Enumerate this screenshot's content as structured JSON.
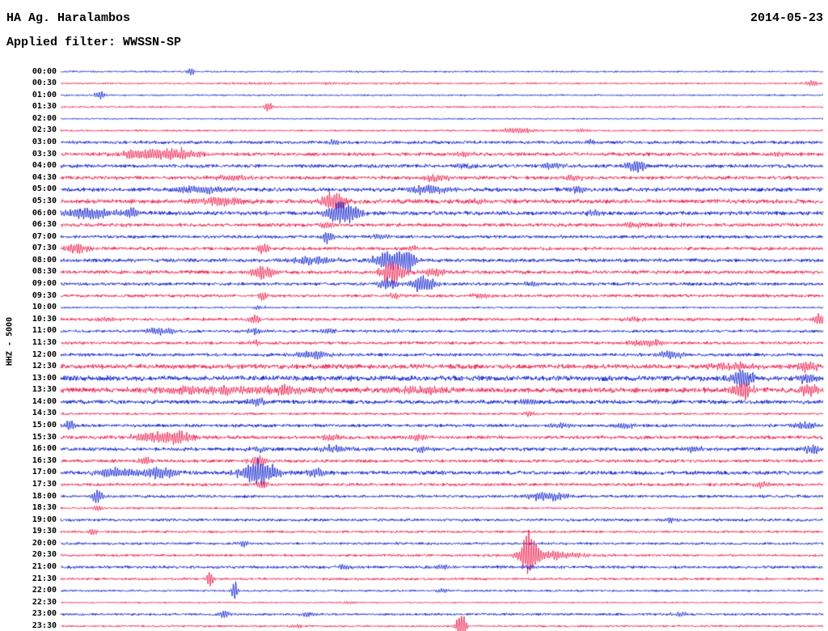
{
  "header": {
    "station_title": "HA Ag. Haralambos",
    "date": "2014-05-23",
    "filter_label": "Applied filter: WWSSN-SP"
  },
  "axis": {
    "vertical_label": "HHZ - 5000"
  },
  "colors": {
    "blue": "#0013cc",
    "red": "#ee1043",
    "text": "#000000",
    "background": "#ffffff"
  },
  "chart_data": {
    "type": "line",
    "subtype": "helicorder-seismogram-dayplot",
    "title": "HA Ag. Haralambos — 2014-05-23 — HHZ — filter WWSSN-SP",
    "row_duration_minutes": 30,
    "rows_count": 48,
    "trace_color_alternation": [
      "blue",
      "red"
    ],
    "note": "Each row = 30 minutes; 'n' is background noise amplitude (px), 'e' lists wave-packet events as fraction position p, amplitude a (px), gaussian width w (fraction of row)",
    "rows": [
      {
        "t": "00:00",
        "c": "blue",
        "n": 0.8,
        "e": [
          {
            "p": 0.17,
            "a": 5,
            "w": 0.004
          }
        ]
      },
      {
        "t": "00:30",
        "c": "red",
        "n": 0.8,
        "e": [
          {
            "p": 0.985,
            "a": 3.5,
            "w": 0.008
          },
          {
            "p": 0.35,
            "a": 1.2,
            "w": 0.15
          }
        ]
      },
      {
        "t": "01:00",
        "c": "blue",
        "n": 0.8,
        "e": [
          {
            "p": 0.052,
            "a": 4.5,
            "w": 0.006
          }
        ]
      },
      {
        "t": "01:30",
        "c": "red",
        "n": 0.9,
        "e": [
          {
            "p": 0.273,
            "a": 6,
            "w": 0.005
          }
        ]
      },
      {
        "t": "02:00",
        "c": "blue",
        "n": 0.7,
        "e": []
      },
      {
        "t": "02:30",
        "c": "red",
        "n": 0.9,
        "e": [
          {
            "p": 0.6,
            "a": 3.5,
            "w": 0.02
          },
          {
            "p": 0.685,
            "a": 2,
            "w": 0.01
          }
        ]
      },
      {
        "t": "03:00",
        "c": "blue",
        "n": 1.6,
        "e": [
          {
            "p": 0.36,
            "a": 3,
            "w": 0.01
          },
          {
            "p": 0.69,
            "a": 3,
            "w": 0.008
          }
        ]
      },
      {
        "t": "03:30",
        "c": "red",
        "n": 1.8,
        "e": [
          {
            "p": 0.1,
            "a": 6,
            "w": 0.02
          },
          {
            "p": 0.15,
            "a": 7,
            "w": 0.025
          },
          {
            "p": 0.53,
            "a": 3,
            "w": 0.01
          },
          {
            "p": 0.945,
            "a": 4,
            "w": 0.006
          }
        ]
      },
      {
        "t": "04:00",
        "c": "blue",
        "n": 1.8,
        "e": [
          {
            "p": 0.53,
            "a": 3,
            "w": 0.01
          },
          {
            "p": 0.645,
            "a": 5,
            "w": 0.012
          },
          {
            "p": 0.755,
            "a": 9,
            "w": 0.01
          }
        ]
      },
      {
        "t": "04:30",
        "c": "red",
        "n": 1.8,
        "e": [
          {
            "p": 0.23,
            "a": 4,
            "w": 0.02
          },
          {
            "p": 0.49,
            "a": 4,
            "w": 0.015
          },
          {
            "p": 0.675,
            "a": 4,
            "w": 0.01
          }
        ]
      },
      {
        "t": "05:00",
        "c": "blue",
        "n": 2.0,
        "e": [
          {
            "p": 0.185,
            "a": 5,
            "w": 0.025
          },
          {
            "p": 0.48,
            "a": 6,
            "w": 0.02
          },
          {
            "p": 0.68,
            "a": 4,
            "w": 0.01
          }
        ]
      },
      {
        "t": "05:30",
        "c": "red",
        "n": 2.2,
        "e": [
          {
            "p": 0.21,
            "a": 6,
            "w": 0.025
          },
          {
            "p": 0.36,
            "a": 12,
            "w": 0.012
          },
          {
            "p": 0.55,
            "a": 4,
            "w": 0.01
          }
        ]
      },
      {
        "t": "06:00",
        "c": "blue",
        "n": 2.0,
        "e": [
          {
            "p": 0.035,
            "a": 9,
            "w": 0.02
          },
          {
            "p": 0.09,
            "a": 6,
            "w": 0.01
          },
          {
            "p": 0.37,
            "a": 16,
            "w": 0.015
          },
          {
            "p": 0.7,
            "a": 4,
            "w": 0.008
          }
        ]
      },
      {
        "t": "06:30",
        "c": "red",
        "n": 1.8,
        "e": [
          {
            "p": 0.35,
            "a": 4,
            "w": 0.01
          },
          {
            "p": 0.75,
            "a": 2.5,
            "w": 0.02
          }
        ]
      },
      {
        "t": "07:00",
        "c": "blue",
        "n": 1.6,
        "e": [
          {
            "p": 0.35,
            "a": 8,
            "w": 0.006
          },
          {
            "p": 0.42,
            "a": 3,
            "w": 0.01
          }
        ]
      },
      {
        "t": "07:30",
        "c": "red",
        "n": 1.6,
        "e": [
          {
            "p": 0.02,
            "a": 7,
            "w": 0.012
          },
          {
            "p": 0.265,
            "a": 8,
            "w": 0.005
          },
          {
            "p": 0.46,
            "a": 4,
            "w": 0.006
          }
        ]
      },
      {
        "t": "08:00",
        "c": "blue",
        "n": 1.8,
        "e": [
          {
            "p": 0.33,
            "a": 6,
            "w": 0.02
          },
          {
            "p": 0.43,
            "a": 12,
            "w": 0.015
          },
          {
            "p": 0.455,
            "a": 14,
            "w": 0.008
          }
        ]
      },
      {
        "t": "08:30",
        "c": "red",
        "n": 1.8,
        "e": [
          {
            "p": 0.265,
            "a": 9,
            "w": 0.012
          },
          {
            "p": 0.435,
            "a": 16,
            "w": 0.012
          },
          {
            "p": 0.49,
            "a": 6,
            "w": 0.01
          }
        ]
      },
      {
        "t": "09:00",
        "c": "blue",
        "n": 1.6,
        "e": [
          {
            "p": 0.43,
            "a": 8,
            "w": 0.01
          },
          {
            "p": 0.475,
            "a": 12,
            "w": 0.012
          },
          {
            "p": 0.62,
            "a": 3,
            "w": 0.008
          }
        ]
      },
      {
        "t": "09:30",
        "c": "red",
        "n": 1.5,
        "e": [
          {
            "p": 0.265,
            "a": 6,
            "w": 0.005
          },
          {
            "p": 0.44,
            "a": 4,
            "w": 0.008
          },
          {
            "p": 0.55,
            "a": 3,
            "w": 0.01
          }
        ]
      },
      {
        "t": "10:00",
        "c": "blue",
        "n": 0.9,
        "e": [
          {
            "p": 0.26,
            "a": 3,
            "w": 0.006
          }
        ]
      },
      {
        "t": "10:30",
        "c": "red",
        "n": 1.5,
        "e": [
          {
            "p": 0.06,
            "a": 3,
            "w": 0.01
          },
          {
            "p": 0.255,
            "a": 4,
            "w": 0.008
          },
          {
            "p": 0.75,
            "a": 3,
            "w": 0.01
          },
          {
            "p": 0.995,
            "a": 8,
            "w": 0.005
          }
        ]
      },
      {
        "t": "11:00",
        "c": "blue",
        "n": 1.4,
        "e": [
          {
            "p": 0.13,
            "a": 5,
            "w": 0.015
          },
          {
            "p": 0.255,
            "a": 4,
            "w": 0.008
          },
          {
            "p": 0.35,
            "a": 3,
            "w": 0.008
          },
          {
            "p": 0.44,
            "a": 3,
            "w": 0.006
          }
        ]
      },
      {
        "t": "11:30",
        "c": "red",
        "n": 1.5,
        "e": [
          {
            "p": 0.255,
            "a": 3,
            "w": 0.006
          },
          {
            "p": 0.77,
            "a": 4,
            "w": 0.02
          }
        ]
      },
      {
        "t": "12:00",
        "c": "blue",
        "n": 1.6,
        "e": [
          {
            "p": 0.33,
            "a": 5,
            "w": 0.02
          },
          {
            "p": 0.8,
            "a": 5,
            "w": 0.015
          }
        ]
      },
      {
        "t": "12:30",
        "c": "red",
        "n": 2.4,
        "e": [
          {
            "p": 0.88,
            "a": 5,
            "w": 0.02
          },
          {
            "p": 0.98,
            "a": 8,
            "w": 0.008
          }
        ]
      },
      {
        "t": "13:00",
        "c": "blue",
        "n": 2.6,
        "e": [
          {
            "p": 0.895,
            "a": 11,
            "w": 0.012
          },
          {
            "p": 0.98,
            "a": 6,
            "w": 0.01
          }
        ]
      },
      {
        "t": "13:30",
        "c": "red",
        "n": 2.6,
        "e": [
          {
            "p": 0.18,
            "a": 5,
            "w": 0.05
          },
          {
            "p": 0.3,
            "a": 5,
            "w": 0.04
          },
          {
            "p": 0.47,
            "a": 4,
            "w": 0.03
          },
          {
            "p": 0.895,
            "a": 12,
            "w": 0.01
          },
          {
            "p": 0.98,
            "a": 8,
            "w": 0.01
          }
        ]
      },
      {
        "t": "14:00",
        "c": "blue",
        "n": 2.0,
        "e": [
          {
            "p": 0.255,
            "a": 5,
            "w": 0.01
          },
          {
            "p": 0.615,
            "a": 4,
            "w": 0.01
          }
        ]
      },
      {
        "t": "14:30",
        "c": "red",
        "n": 1.2,
        "e": [
          {
            "p": 0.615,
            "a": 4,
            "w": 0.006
          }
        ]
      },
      {
        "t": "15:00",
        "c": "blue",
        "n": 1.6,
        "e": [
          {
            "p": 0.012,
            "a": 8,
            "w": 0.005
          },
          {
            "p": 0.655,
            "a": 4,
            "w": 0.012
          },
          {
            "p": 0.74,
            "a": 4,
            "w": 0.01
          },
          {
            "p": 0.975,
            "a": 5,
            "w": 0.012
          }
        ]
      },
      {
        "t": "15:30",
        "c": "red",
        "n": 1.8,
        "e": [
          {
            "p": 0.12,
            "a": 6,
            "w": 0.02
          },
          {
            "p": 0.155,
            "a": 7,
            "w": 0.015
          },
          {
            "p": 0.355,
            "a": 5,
            "w": 0.01
          },
          {
            "p": 0.47,
            "a": 4,
            "w": 0.01
          }
        ]
      },
      {
        "t": "16:00",
        "c": "blue",
        "n": 1.8,
        "e": [
          {
            "p": 0.26,
            "a": 4,
            "w": 0.01
          },
          {
            "p": 0.36,
            "a": 5,
            "w": 0.015
          },
          {
            "p": 0.475,
            "a": 4,
            "w": 0.01
          },
          {
            "p": 0.83,
            "a": 4,
            "w": 0.01
          },
          {
            "p": 0.985,
            "a": 6,
            "w": 0.008
          }
        ]
      },
      {
        "t": "16:30",
        "c": "red",
        "n": 1.6,
        "e": [
          {
            "p": 0.11,
            "a": 6,
            "w": 0.006
          },
          {
            "p": 0.26,
            "a": 8,
            "w": 0.008
          }
        ]
      },
      {
        "t": "17:00",
        "c": "blue",
        "n": 2.0,
        "e": [
          {
            "p": 0.075,
            "a": 7,
            "w": 0.02
          },
          {
            "p": 0.13,
            "a": 8,
            "w": 0.015
          },
          {
            "p": 0.26,
            "a": 16,
            "w": 0.018
          },
          {
            "p": 0.335,
            "a": 6,
            "w": 0.01
          }
        ]
      },
      {
        "t": "17:30",
        "c": "red",
        "n": 1.5,
        "e": [
          {
            "p": 0.265,
            "a": 6,
            "w": 0.006
          },
          {
            "p": 0.92,
            "a": 4,
            "w": 0.008
          }
        ]
      },
      {
        "t": "18:00",
        "c": "blue",
        "n": 1.4,
        "e": [
          {
            "p": 0.048,
            "a": 9,
            "w": 0.005
          },
          {
            "p": 0.64,
            "a": 6,
            "w": 0.02
          }
        ]
      },
      {
        "t": "18:30",
        "c": "red",
        "n": 1.0,
        "e": [
          {
            "p": 0.048,
            "a": 4,
            "w": 0.004
          }
        ]
      },
      {
        "t": "19:00",
        "c": "blue",
        "n": 1.4,
        "e": [
          {
            "p": 0.8,
            "a": 3,
            "w": 0.01
          }
        ]
      },
      {
        "t": "19:30",
        "c": "red",
        "n": 1.2,
        "e": [
          {
            "p": 0.042,
            "a": 6,
            "w": 0.004
          }
        ]
      },
      {
        "t": "20:00",
        "c": "blue",
        "n": 1.2,
        "e": [
          {
            "p": 0.24,
            "a": 4,
            "w": 0.005
          }
        ]
      },
      {
        "t": "20:30",
        "c": "red",
        "n": 1.2,
        "e": [
          {
            "p": 0.615,
            "a": 30,
            "w": 0.007
          },
          {
            "p": 0.64,
            "a": 5,
            "w": 0.04
          }
        ]
      },
      {
        "t": "21:00",
        "c": "blue",
        "n": 1.4,
        "e": [
          {
            "p": 0.37,
            "a": 3,
            "w": 0.01
          },
          {
            "p": 0.5,
            "a": 3,
            "w": 0.008
          },
          {
            "p": 0.615,
            "a": 2.5,
            "w": 0.01
          }
        ]
      },
      {
        "t": "21:30",
        "c": "red",
        "n": 1.2,
        "e": [
          {
            "p": 0.196,
            "a": 12,
            "w": 0.0035
          }
        ]
      },
      {
        "t": "22:00",
        "c": "blue",
        "n": 1.0,
        "e": [
          {
            "p": 0.228,
            "a": 14,
            "w": 0.003
          },
          {
            "p": 0.5,
            "a": 4,
            "w": 0.005
          }
        ]
      },
      {
        "t": "22:30",
        "c": "red",
        "n": 0.7,
        "e": [
          {
            "p": 0.38,
            "a": 2,
            "w": 0.01
          }
        ]
      },
      {
        "t": "23:00",
        "c": "blue",
        "n": 1.2,
        "e": [
          {
            "p": 0.215,
            "a": 5,
            "w": 0.005
          },
          {
            "p": 0.325,
            "a": 4,
            "w": 0.006
          },
          {
            "p": 0.81,
            "a": 3,
            "w": 0.008
          }
        ]
      },
      {
        "t": "23:30",
        "c": "red",
        "n": 1.0,
        "e": [
          {
            "p": 0.31,
            "a": 3,
            "w": 0.006
          },
          {
            "p": 0.525,
            "a": 18,
            "w": 0.005
          }
        ]
      }
    ]
  }
}
